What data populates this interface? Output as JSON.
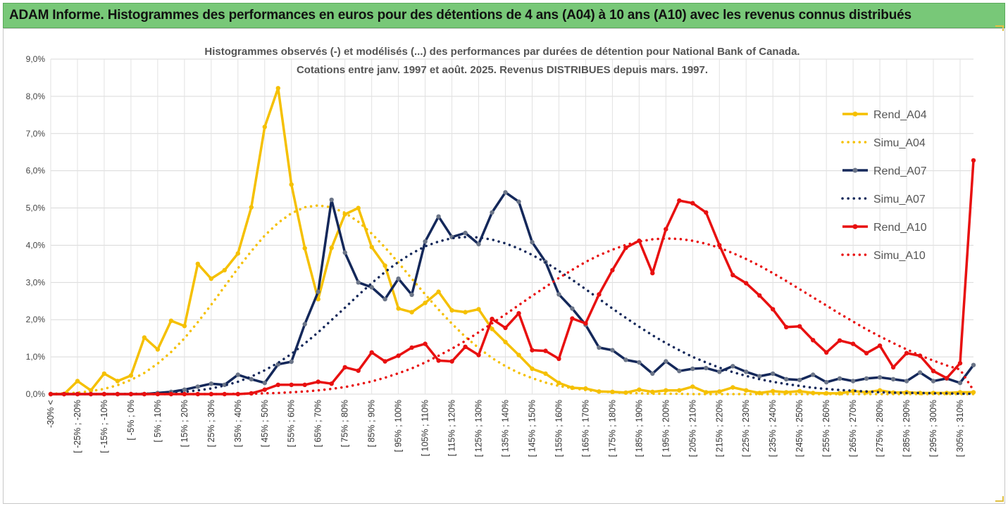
{
  "banner": {
    "title": "ADAM Informe. Histogrammes des performances en euros pour des détentions de 4 ans (A04) à 10 ans (A10) avec les revenus connus distribués"
  },
  "chart_data": {
    "type": "line",
    "title": "Histogrammes observés (-) et modélisés (...) des performances par durées de détention pour National Bank of Canada.",
    "subtitle": "Cotations entre janv. 1997 et août. 2025. Revenus DISTRIBUES depuis mars. 1997.",
    "ylim": [
      0,
      9
    ],
    "yticks": [
      "0,0%",
      "1,0%",
      "2,0%",
      "3,0%",
      "4,0%",
      "5,0%",
      "6,0%",
      "7,0%",
      "8,0%",
      "9,0%"
    ],
    "xticks": [
      "-30% <",
      "[ -25% ; -20%",
      "[ -15% ; -10%",
      "[ -5% ; 0%",
      "[ 5% ; 10%",
      "[ 15% ; 20%",
      "[ 25% ; 30%",
      "[ 35% ; 40%",
      "[ 45% ; 50%",
      "[ 55% ; 60%",
      "[ 65% ; 70%",
      "[ 75% ; 80%",
      "[ 85% ; 90%",
      "[ 95% ; 100%",
      "[ 105% ; 110%",
      "[ 115% ; 120%",
      "[ 125% ; 130%",
      "[ 135% ; 140%",
      "[ 145% ; 150%",
      "[ 155% ; 160%",
      "[ 165% ; 170%",
      "[ 175% ; 180%",
      "[ 185% ; 190%",
      "[ 195% ; 200%",
      "[ 205% ; 210%",
      "[ 215% ; 220%",
      "[ 225% ; 230%",
      "[ 235% ; 240%",
      "[ 245% ; 250%",
      "[ 255% ; 260%",
      "[ 265% ; 270%",
      "[ 275% ; 280%",
      "[ 285% ; 290%",
      "[ 295% ; 300%",
      "[ 305% ; 310%"
    ],
    "grid": true,
    "legend_position": "right",
    "series": [
      {
        "name": "Rend_A04",
        "style": "solid",
        "color": "#f5c000",
        "values": [
          0,
          0,
          0.35,
          0.1,
          0.55,
          0.35,
          0.5,
          1.52,
          1.2,
          1.97,
          1.83,
          3.5,
          3.1,
          3.33,
          3.78,
          5.02,
          7.18,
          8.22,
          5.63,
          3.92,
          2.55,
          3.93,
          4.83,
          5.0,
          3.95,
          3.45,
          2.3,
          2.2,
          2.45,
          2.75,
          2.25,
          2.2,
          2.28,
          1.75,
          1.4,
          1.05,
          0.68,
          0.55,
          0.3,
          0.17,
          0.15,
          0.07,
          0.06,
          0.04,
          0.12,
          0.06,
          0.1,
          0.1,
          0.2,
          0.05,
          0.07,
          0.18,
          0.1,
          0.03,
          0.08,
          0.05,
          0.08,
          0.03,
          0.02,
          0.02,
          0.08,
          0.05,
          0.1,
          0.04,
          0.05,
          0.03,
          0.03,
          0.03,
          0.05,
          0.05
        ]
      },
      {
        "name": "Simu_A04",
        "style": "dotted",
        "color": "#f5c000",
        "values": [
          0.01,
          0.02,
          0.04,
          0.08,
          0.14,
          0.24,
          0.38,
          0.57,
          0.82,
          1.13,
          1.5,
          1.93,
          2.4,
          2.89,
          3.38,
          3.84,
          4.26,
          4.6,
          4.86,
          5.02,
          5.07,
          5.02,
          4.87,
          4.63,
          4.31,
          3.94,
          3.53,
          3.1,
          2.68,
          2.27,
          1.89,
          1.54,
          1.24,
          0.97,
          0.75,
          0.57,
          0.43,
          0.31,
          0.22,
          0.16,
          0.11,
          0.07,
          0.05,
          0.03,
          0.02,
          0.01,
          0.01,
          0.01,
          0,
          0,
          0,
          0,
          0,
          0,
          0,
          0,
          0,
          0,
          0,
          0,
          0,
          0,
          0,
          0,
          0,
          0,
          0,
          0,
          0,
          0
        ]
      },
      {
        "name": "Rend_A07",
        "style": "solid",
        "color": "#14285a",
        "values": [
          0,
          0,
          0,
          0,
          0,
          0,
          0,
          0,
          0.03,
          0.06,
          0.12,
          0.2,
          0.28,
          0.25,
          0.52,
          0.4,
          0.3,
          0.8,
          0.87,
          1.88,
          2.75,
          5.22,
          3.8,
          3.0,
          2.87,
          2.55,
          3.1,
          2.67,
          4.1,
          4.77,
          4.22,
          4.33,
          4.03,
          4.88,
          5.42,
          5.17,
          4.08,
          3.55,
          2.68,
          2.3,
          1.86,
          1.25,
          1.18,
          0.92,
          0.85,
          0.55,
          0.88,
          0.62,
          0.68,
          0.7,
          0.6,
          0.75,
          0.6,
          0.48,
          0.55,
          0.4,
          0.38,
          0.52,
          0.32,
          0.42,
          0.35,
          0.42,
          0.45,
          0.4,
          0.35,
          0.58,
          0.35,
          0.42,
          0.3,
          0.78
        ]
      },
      {
        "name": "Simu_A07",
        "style": "dotted",
        "color": "#14285a",
        "values": [
          0,
          0,
          0,
          0,
          0,
          0,
          0.01,
          0.01,
          0.02,
          0.04,
          0.06,
          0.1,
          0.15,
          0.23,
          0.33,
          0.47,
          0.64,
          0.84,
          1.08,
          1.36,
          1.66,
          1.99,
          2.32,
          2.66,
          2.98,
          3.28,
          3.55,
          3.78,
          3.97,
          4.1,
          4.19,
          4.22,
          4.21,
          4.15,
          4.05,
          3.91,
          3.74,
          3.54,
          3.31,
          3.07,
          2.82,
          2.56,
          2.3,
          2.05,
          1.81,
          1.58,
          1.37,
          1.18,
          1.0,
          0.85,
          0.71,
          0.59,
          0.49,
          0.4,
          0.33,
          0.27,
          0.22,
          0.17,
          0.14,
          0.11,
          0.09,
          0.07,
          0.05,
          0.04,
          0.03,
          0.03,
          0.02,
          0.02,
          0.01,
          0.01
        ]
      },
      {
        "name": "Rend_A10",
        "style": "solid",
        "color": "#e81010",
        "values": [
          0,
          0,
          0,
          0,
          0,
          0,
          0,
          0,
          0,
          0,
          0,
          0,
          0,
          0,
          0,
          0.02,
          0.12,
          0.25,
          0.25,
          0.25,
          0.33,
          0.28,
          0.72,
          0.63,
          1.12,
          0.88,
          1.03,
          1.25,
          1.35,
          0.9,
          0.88,
          1.27,
          1.05,
          2.02,
          1.78,
          2.17,
          1.18,
          1.16,
          0.95,
          2.03,
          1.9,
          2.68,
          3.33,
          3.93,
          4.12,
          3.25,
          4.43,
          5.2,
          5.13,
          4.88,
          4.0,
          3.2,
          2.98,
          2.65,
          2.28,
          1.8,
          1.82,
          1.45,
          1.12,
          1.44,
          1.35,
          1.1,
          1.3,
          0.72,
          1.1,
          1.03,
          0.62,
          0.43,
          0.83,
          6.28
        ]
      },
      {
        "name": "Simu_A10",
        "style": "dotted",
        "color": "#e81010",
        "values": [
          0,
          0,
          0,
          0,
          0,
          0,
          0,
          0,
          0,
          0,
          0,
          0,
          0,
          0,
          0.01,
          0.01,
          0.02,
          0.03,
          0.05,
          0.07,
          0.1,
          0.14,
          0.19,
          0.26,
          0.34,
          0.44,
          0.56,
          0.69,
          0.85,
          1.03,
          1.22,
          1.43,
          1.66,
          1.9,
          2.14,
          2.39,
          2.64,
          2.88,
          3.12,
          3.34,
          3.55,
          3.73,
          3.88,
          4.01,
          4.1,
          4.16,
          4.18,
          4.17,
          4.12,
          4.04,
          3.93,
          3.79,
          3.63,
          3.45,
          3.25,
          3.04,
          2.82,
          2.6,
          2.38,
          2.16,
          1.95,
          1.74,
          1.55,
          1.37,
          1.2,
          1.04,
          0.9,
          0.77,
          0.66,
          0.1
        ]
      }
    ]
  }
}
